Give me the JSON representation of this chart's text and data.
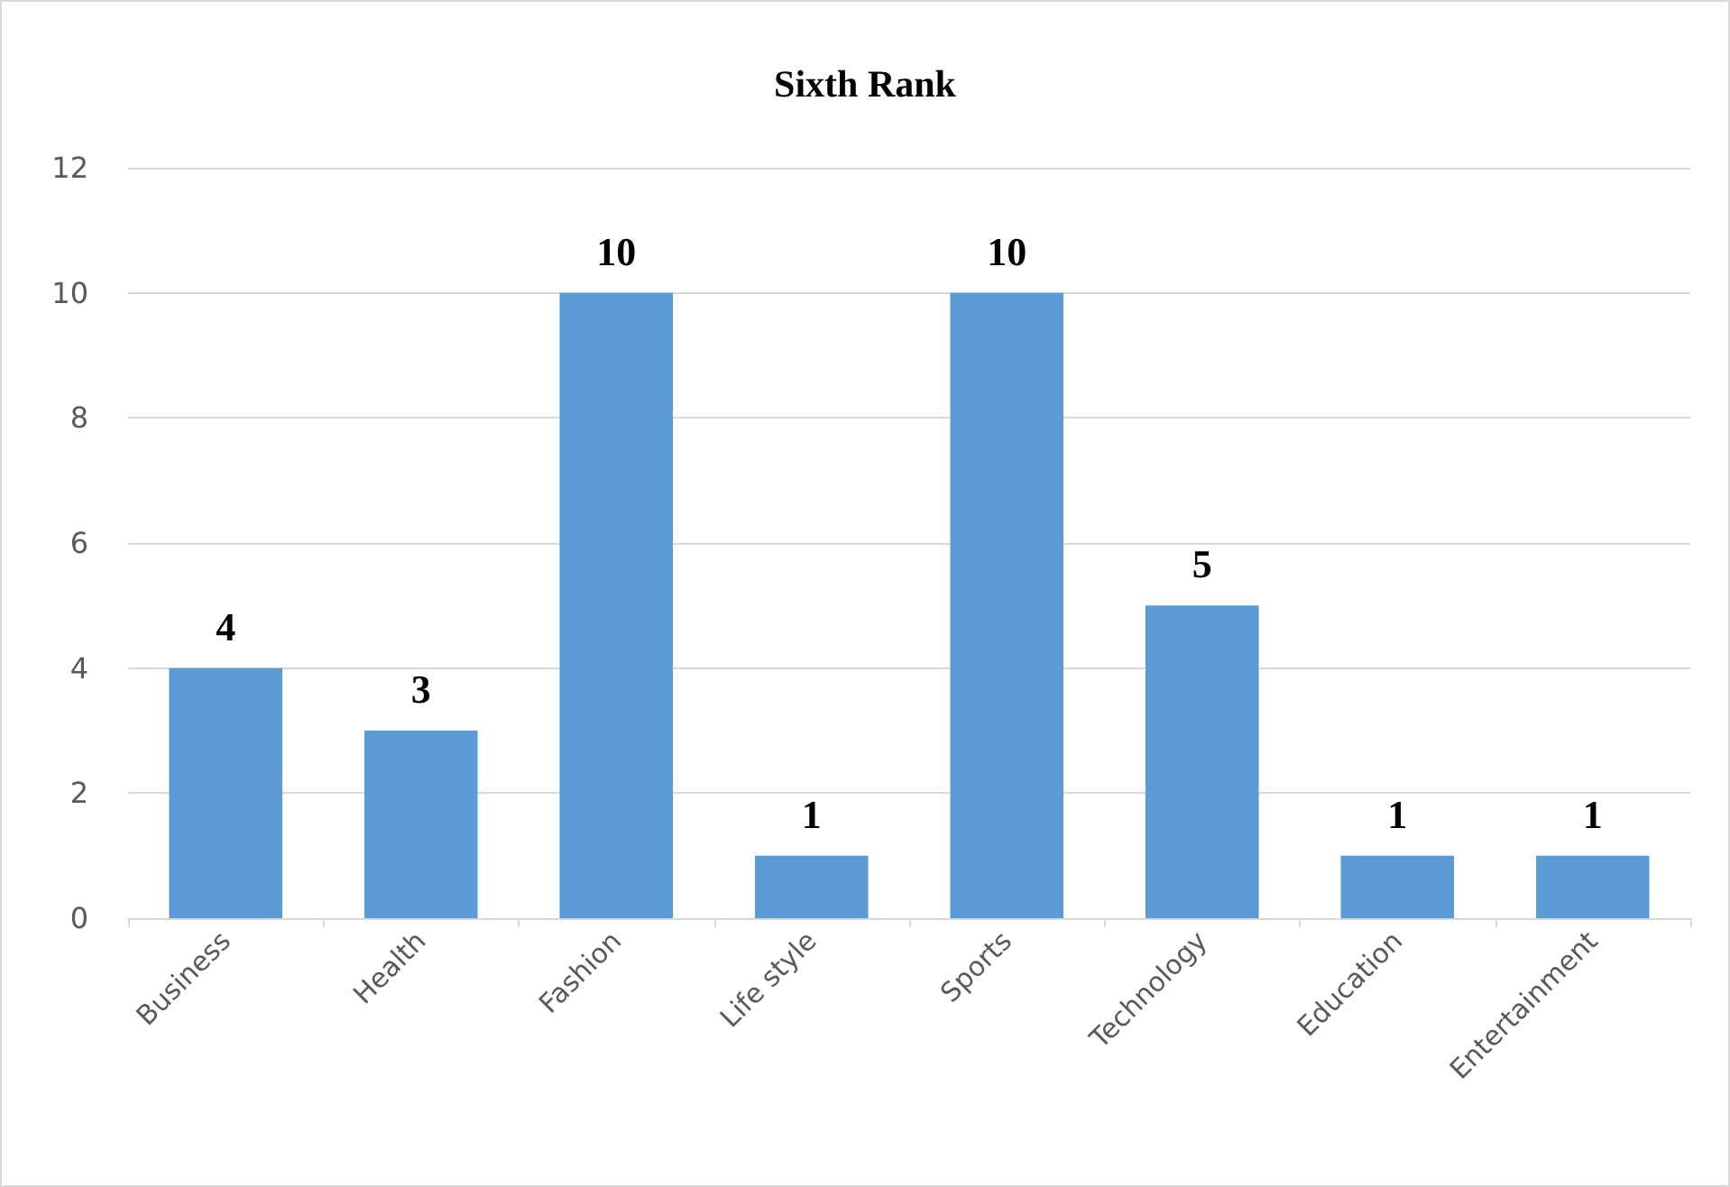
{
  "chart_data": {
    "type": "bar",
    "title": "Sixth Rank",
    "categories": [
      "Business",
      "Health",
      "Fashion",
      "Life style",
      "Sports",
      "Technology",
      "Education",
      "Entertainment"
    ],
    "values": [
      4,
      3,
      10,
      1,
      10,
      5,
      1,
      1
    ],
    "color": "#5b9bd5",
    "ylim": [
      0,
      12
    ],
    "yticks": [
      0,
      2,
      4,
      6,
      8,
      10,
      12
    ],
    "grid": "y",
    "data_labels": true
  }
}
